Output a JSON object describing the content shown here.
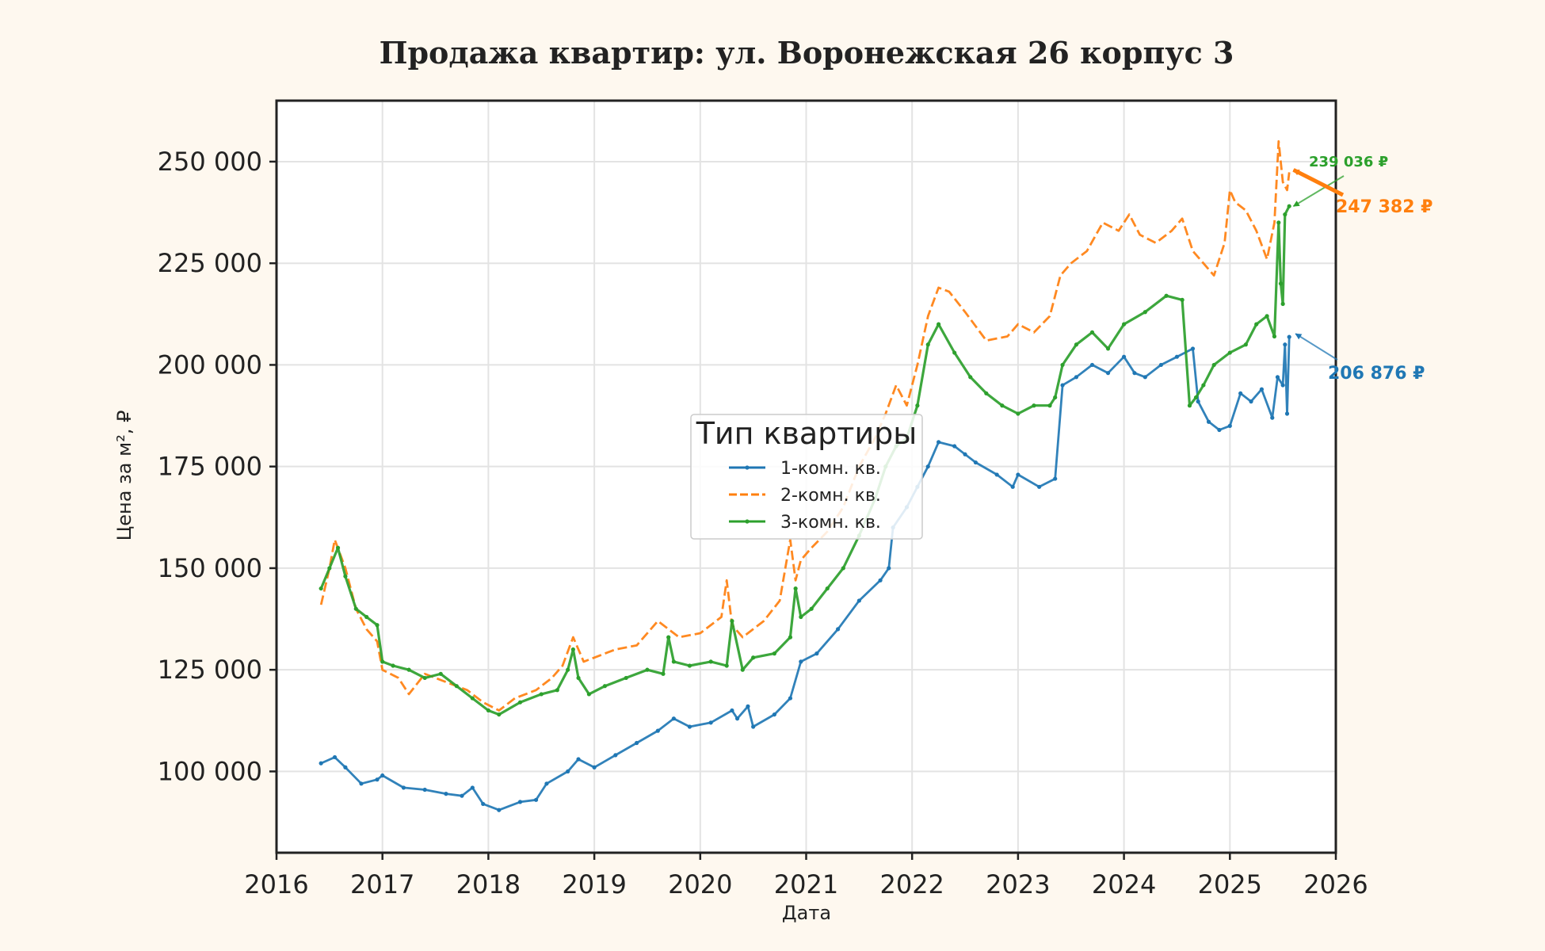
{
  "chart_data": {
    "type": "line",
    "title": "Продажа квартир: ул. Воронежская 26 корпус 3",
    "xlabel": "Дата",
    "ylabel": "Цена за м², ₽",
    "xlim": [
      2016.0,
      2026.0
    ],
    "ylim": [
      80000,
      265000
    ],
    "x_ticks": [
      "2016",
      "2017",
      "2018",
      "2019",
      "2020",
      "2021",
      "2022",
      "2023",
      "2024",
      "2025",
      "2026"
    ],
    "y_ticks": [
      {
        "value": 100000,
        "label": "100 000"
      },
      {
        "value": 125000,
        "label": "125 000"
      },
      {
        "value": 150000,
        "label": "150 000"
      },
      {
        "value": 175000,
        "label": "175 000"
      },
      {
        "value": 200000,
        "label": "200 000"
      },
      {
        "value": 225000,
        "label": "225 000"
      },
      {
        "value": 250000,
        "label": "250 000"
      }
    ],
    "grid": true,
    "legend": {
      "title": "Тип квартиры",
      "position": "center"
    },
    "series": [
      {
        "name": "1-комн. кв.",
        "color": "#1f77b4",
        "dash": "solid",
        "x": [
          2016.42,
          2016.55,
          2016.65,
          2016.8,
          2016.95,
          2017.0,
          2017.2,
          2017.4,
          2017.6,
          2017.75,
          2017.85,
          2017.95,
          2018.1,
          2018.3,
          2018.45,
          2018.55,
          2018.75,
          2018.85,
          2019.0,
          2019.2,
          2019.4,
          2019.6,
          2019.75,
          2019.9,
          2020.1,
          2020.3,
          2020.35,
          2020.45,
          2020.5,
          2020.7,
          2020.85,
          2020.95,
          2021.1,
          2021.3,
          2021.5,
          2021.7,
          2021.78,
          2021.82,
          2021.95,
          2022.05,
          2022.15,
          2022.25,
          2022.4,
          2022.5,
          2022.6,
          2022.8,
          2022.95,
          2023.0,
          2023.2,
          2023.35,
          2023.42,
          2023.55,
          2023.7,
          2023.85,
          2024.0,
          2024.1,
          2024.2,
          2024.35,
          2024.5,
          2024.65,
          2024.7,
          2024.8,
          2024.9,
          2025.0,
          2025.1,
          2025.2,
          2025.3,
          2025.4,
          2025.45,
          2025.5,
          2025.52,
          2025.54,
          2025.56
        ],
        "y": [
          102000,
          103500,
          101000,
          97000,
          98000,
          99000,
          96000,
          95500,
          94500,
          94000,
          96000,
          92000,
          90500,
          92500,
          93000,
          97000,
          100000,
          103000,
          101000,
          104000,
          107000,
          110000,
          113000,
          111000,
          112000,
          115000,
          113000,
          116000,
          111000,
          114000,
          118000,
          127000,
          129000,
          135000,
          142000,
          147000,
          150000,
          160000,
          165000,
          170000,
          175000,
          181000,
          180000,
          178000,
          176000,
          173000,
          170000,
          173000,
          170000,
          172000,
          195000,
          197000,
          200000,
          198000,
          202000,
          198000,
          197000,
          200000,
          202000,
          204000,
          191000,
          186000,
          184000,
          185000,
          193000,
          191000,
          194000,
          187000,
          197000,
          195000,
          205000,
          188000,
          206876
        ]
      },
      {
        "name": "2-комн. кв.",
        "color": "#ff7f0e",
        "dash": "dashed",
        "x": [
          2016.42,
          2016.5,
          2016.55,
          2016.65,
          2016.75,
          2016.85,
          2016.95,
          2017.0,
          2017.15,
          2017.25,
          2017.4,
          2017.6,
          2017.8,
          2017.95,
          2018.1,
          2018.25,
          2018.45,
          2018.6,
          2018.7,
          2018.8,
          2018.9,
          2019.0,
          2019.2,
          2019.4,
          2019.5,
          2019.6,
          2019.8,
          2020.0,
          2020.2,
          2020.25,
          2020.3,
          2020.4,
          2020.5,
          2020.6,
          2020.75,
          2020.85,
          2020.9,
          2020.95,
          2021.05,
          2021.2,
          2021.35,
          2021.5,
          2021.65,
          2021.75,
          2021.85,
          2021.95,
          2022.05,
          2022.15,
          2022.25,
          2022.35,
          2022.5,
          2022.7,
          2022.9,
          2023.0,
          2023.15,
          2023.3,
          2023.4,
          2023.5,
          2023.65,
          2023.8,
          2023.95,
          2024.05,
          2024.15,
          2024.3,
          2024.45,
          2024.55,
          2024.65,
          2024.75,
          2024.85,
          2024.95,
          2025.0,
          2025.05,
          2025.15,
          2025.25,
          2025.35,
          2025.42,
          2025.46,
          2025.5,
          2025.54,
          2025.56
        ],
        "y": [
          141000,
          150000,
          157000,
          150000,
          140000,
          135000,
          132000,
          125000,
          123000,
          119000,
          124000,
          122000,
          120000,
          117000,
          115000,
          118000,
          120000,
          123000,
          126000,
          133000,
          127000,
          128000,
          130000,
          131000,
          134000,
          137000,
          133000,
          134000,
          138000,
          147000,
          136000,
          133000,
          135000,
          137000,
          142000,
          157000,
          147000,
          152000,
          155000,
          159000,
          165000,
          175000,
          182000,
          188000,
          195000,
          190000,
          200000,
          212000,
          219000,
          218000,
          213000,
          206000,
          207000,
          210000,
          208000,
          212000,
          222000,
          225000,
          228000,
          235000,
          233000,
          237000,
          232000,
          230000,
          233000,
          236000,
          228000,
          225000,
          222000,
          230000,
          243000,
          240000,
          238000,
          233000,
          226000,
          235000,
          255000,
          245000,
          243000,
          247382
        ]
      },
      {
        "name": "3-комн. кв.",
        "color": "#2ca02c",
        "dash": "solid",
        "x": [
          2016.42,
          2016.5,
          2016.58,
          2016.65,
          2016.75,
          2016.85,
          2016.95,
          2017.0,
          2017.1,
          2017.25,
          2017.4,
          2017.55,
          2017.7,
          2017.85,
          2018.0,
          2018.1,
          2018.3,
          2018.5,
          2018.65,
          2018.75,
          2018.8,
          2018.85,
          2018.95,
          2019.1,
          2019.3,
          2019.5,
          2019.65,
          2019.7,
          2019.75,
          2019.9,
          2020.1,
          2020.25,
          2020.3,
          2020.4,
          2020.5,
          2020.7,
          2020.85,
          2020.9,
          2020.95,
          2021.05,
          2021.2,
          2021.35,
          2021.5,
          2021.65,
          2021.75,
          2021.85,
          2021.95,
          2022.05,
          2022.15,
          2022.25,
          2022.4,
          2022.55,
          2022.7,
          2022.85,
          2023.0,
          2023.15,
          2023.3,
          2023.35,
          2023.42,
          2023.55,
          2023.7,
          2023.85,
          2024.0,
          2024.2,
          2024.4,
          2024.55,
          2024.62,
          2024.68,
          2024.75,
          2024.85,
          2025.0,
          2025.15,
          2025.25,
          2025.35,
          2025.42,
          2025.46,
          2025.48,
          2025.5,
          2025.52,
          2025.56
        ],
        "y": [
          145000,
          150000,
          155000,
          148000,
          140000,
          138000,
          136000,
          127000,
          126000,
          125000,
          123000,
          124000,
          121000,
          118000,
          115000,
          114000,
          117000,
          119000,
          120000,
          125000,
          130000,
          123000,
          119000,
          121000,
          123000,
          125000,
          124000,
          133000,
          127000,
          126000,
          127000,
          126000,
          137000,
          125000,
          128000,
          129000,
          133000,
          145000,
          138000,
          140000,
          145000,
          150000,
          158000,
          167000,
          175000,
          180000,
          182000,
          190000,
          205000,
          210000,
          203000,
          197000,
          193000,
          190000,
          188000,
          190000,
          190000,
          192000,
          200000,
          205000,
          208000,
          204000,
          210000,
          213000,
          217000,
          216000,
          190000,
          192000,
          195000,
          200000,
          203000,
          205000,
          210000,
          212000,
          207000,
          235000,
          220000,
          215000,
          237000,
          239036
        ]
      }
    ],
    "annotations": [
      {
        "series": "3-комн. кв.",
        "text": "239 036 ₽",
        "x": 2025.56,
        "y": 239036,
        "color": "#2ca02c"
      },
      {
        "series": "2-комн. кв.",
        "text": "247 382 ₽",
        "x": 2025.56,
        "y": 247382,
        "color": "#ff7f0e"
      },
      {
        "series": "1-комн. кв.",
        "text": "206 876 ₽",
        "x": 2025.56,
        "y": 206876,
        "color": "#1f77b4"
      }
    ]
  }
}
